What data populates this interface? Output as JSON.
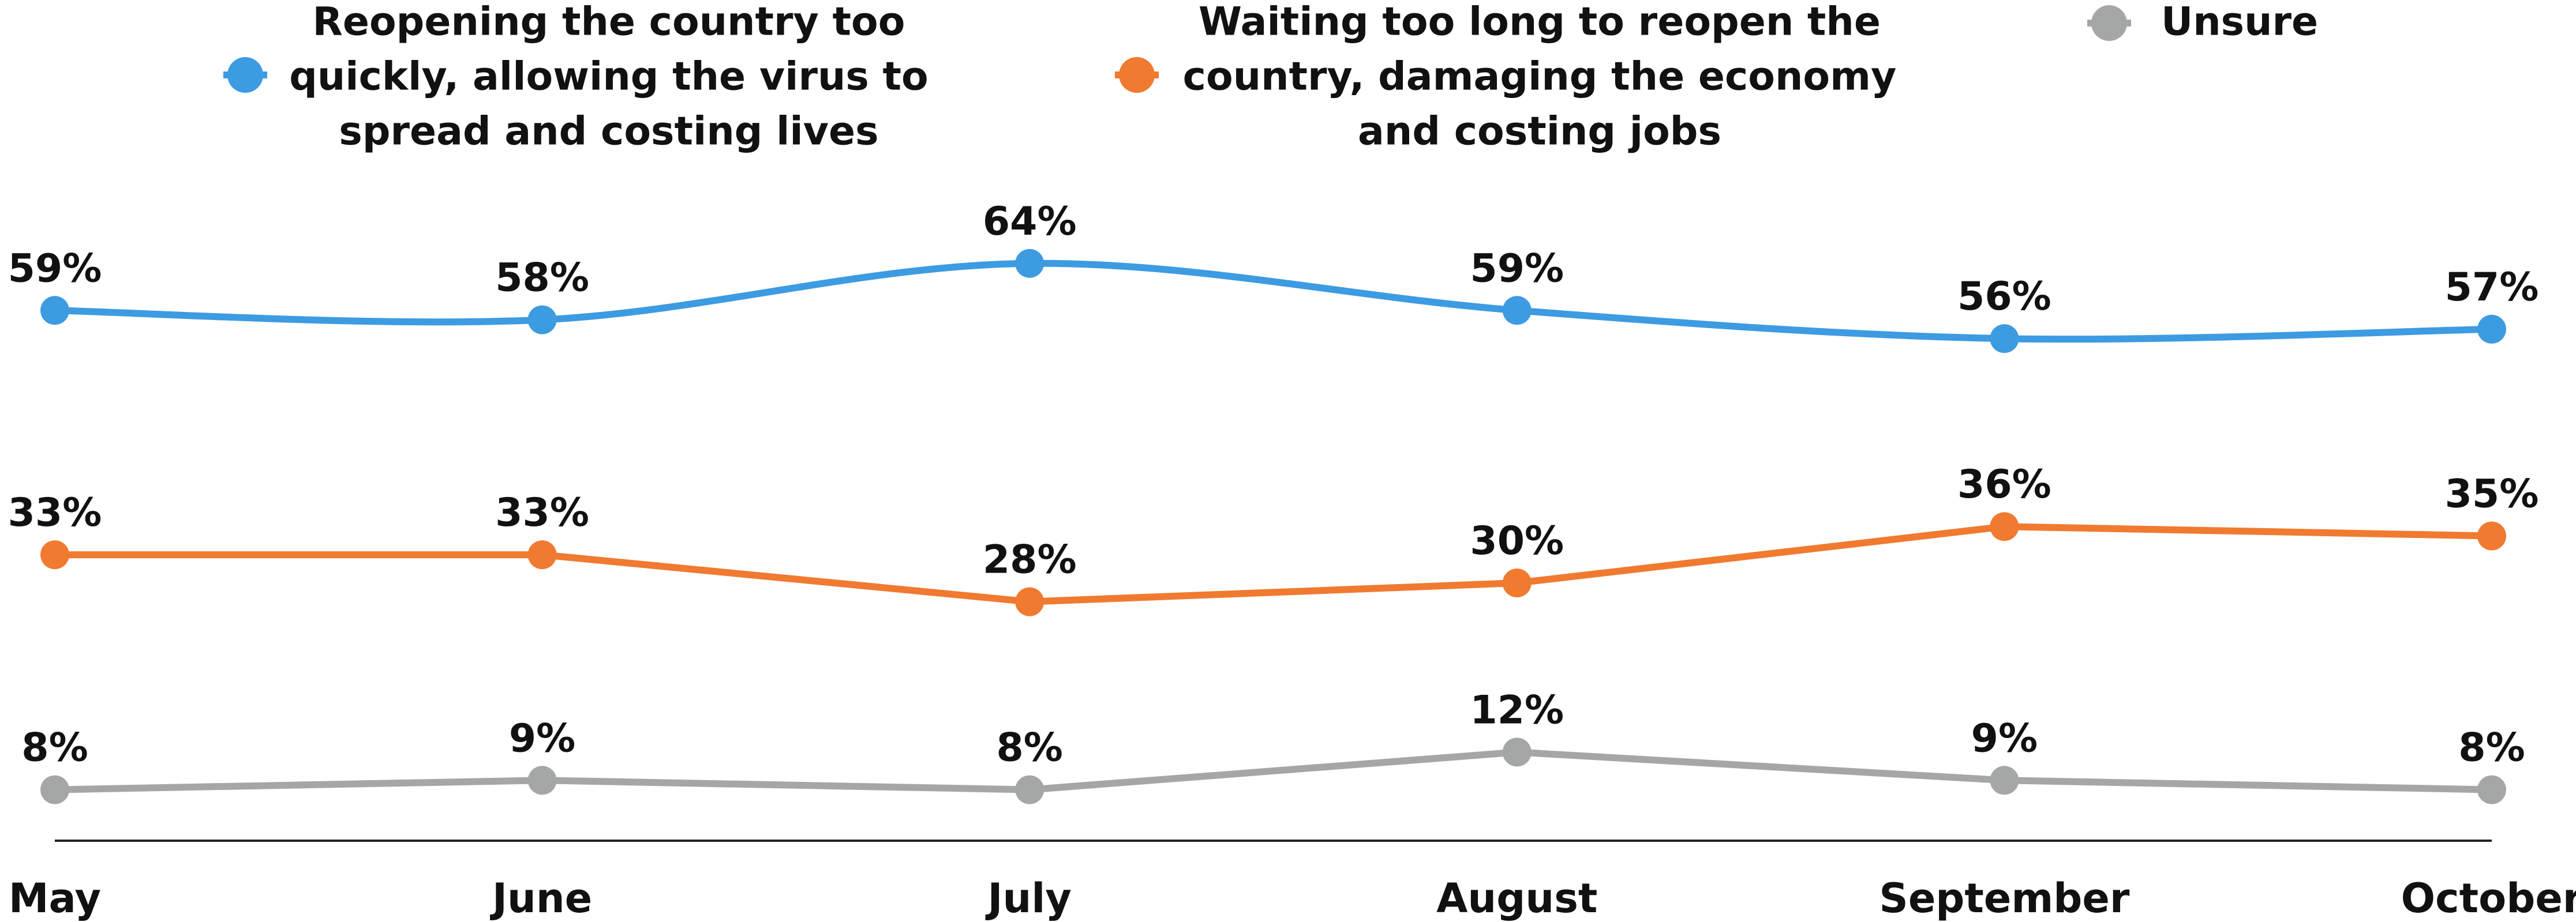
{
  "chart_data": {
    "type": "line",
    "categories": [
      "May",
      "June",
      "July",
      "August",
      "September",
      "October"
    ],
    "series": [
      {
        "name": "Reopening the country too quickly, allowing the virus to spread and costing lives",
        "name_lines": [
          "Reopening the country too",
          "quickly, allowing the virus to",
          "spread and costing lives"
        ],
        "values": [
          59,
          58,
          64,
          59,
          56,
          57
        ],
        "labels": [
          "59%",
          "58%",
          "64%",
          "59%",
          "56%",
          "57%"
        ],
        "color": "#3d9be2",
        "smooth": true
      },
      {
        "name": "Waiting too long to reopen the country, damaging the economy and costing jobs",
        "name_lines": [
          "Waiting too long to reopen the",
          "country, damaging the economy",
          "and costing jobs"
        ],
        "values": [
          33,
          33,
          28,
          30,
          36,
          35
        ],
        "labels": [
          "33%",
          "33%",
          "28%",
          "30%",
          "36%",
          "35%"
        ],
        "color": "#f07a30",
        "smooth": false
      },
      {
        "name": "Unsure",
        "name_lines": [
          "Unsure"
        ],
        "values": [
          8,
          9,
          8,
          12,
          9,
          8
        ],
        "labels": [
          "8%",
          "9%",
          "8%",
          "12%",
          "9%",
          "8%"
        ],
        "color": "#a5a7a6",
        "smooth": false
      }
    ],
    "ylim": [
      0,
      70
    ],
    "grid": false,
    "legend_position": "top",
    "title": "",
    "xlabel": "",
    "ylabel": ""
  }
}
